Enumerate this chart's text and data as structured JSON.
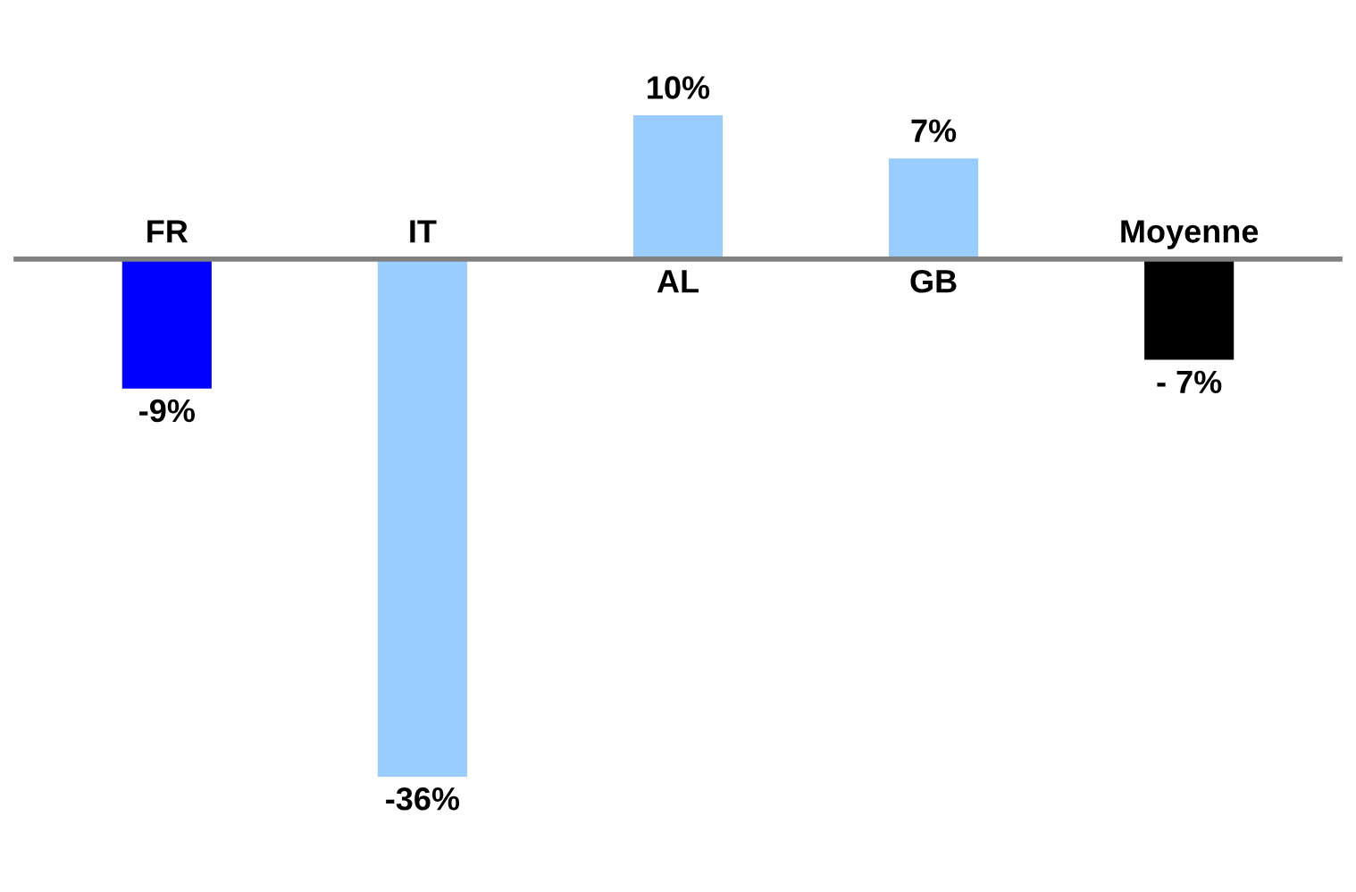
{
  "chart_data": {
    "type": "bar",
    "categories": [
      "FR",
      "IT",
      "AL",
      "GB",
      "Moyenne"
    ],
    "values": [
      -9,
      -36,
      10,
      7,
      -7
    ],
    "colors": [
      "#0000ff",
      "#99ccff",
      "#99ccff",
      "#99ccff",
      "#000000"
    ],
    "value_labels": [
      "-9%",
      "-36%",
      "10%",
      "7%",
      "- 7%"
    ]
  }
}
